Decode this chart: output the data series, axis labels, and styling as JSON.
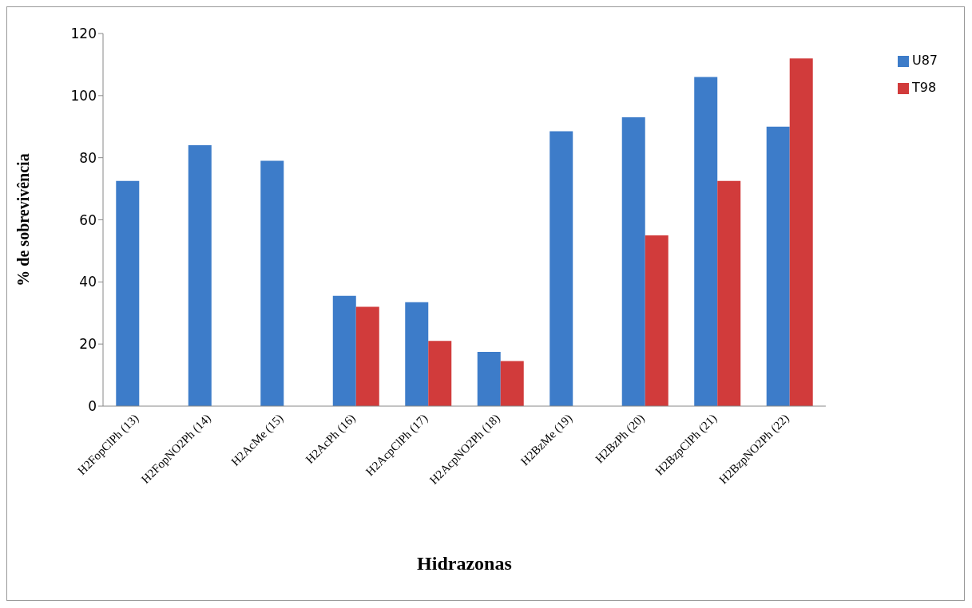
{
  "chart_data": {
    "type": "bar",
    "xlabel": "Hidrazonas",
    "ylabel": "% de sobrevivência",
    "categories": [
      "H2FopClPh (13)",
      "H2FopNO2Ph (14)",
      "H2AcMe (15)",
      "H2AcPh (16)",
      "H2AcpClPh (17)",
      "H2AcpNO2Ph (18)",
      "H2BzMe (19)",
      "H2BzPh (20)",
      "H2BzpClPh (21)",
      "H2BzpNO2Ph (22)"
    ],
    "series": [
      {
        "name": "U87",
        "color": "#3d7cc9",
        "values": [
          72.5,
          84,
          79,
          35.5,
          33.5,
          17.5,
          88.5,
          93,
          106,
          90
        ]
      },
      {
        "name": "T98",
        "color": "#d13b3b",
        "values": [
          null,
          null,
          null,
          32,
          21,
          14.5,
          null,
          55,
          72.5,
          112
        ]
      }
    ],
    "ylim": [
      0,
      120
    ],
    "yticks": [
      0,
      20,
      40,
      60,
      80,
      100,
      120
    ],
    "grid": false,
    "legend": "right"
  }
}
